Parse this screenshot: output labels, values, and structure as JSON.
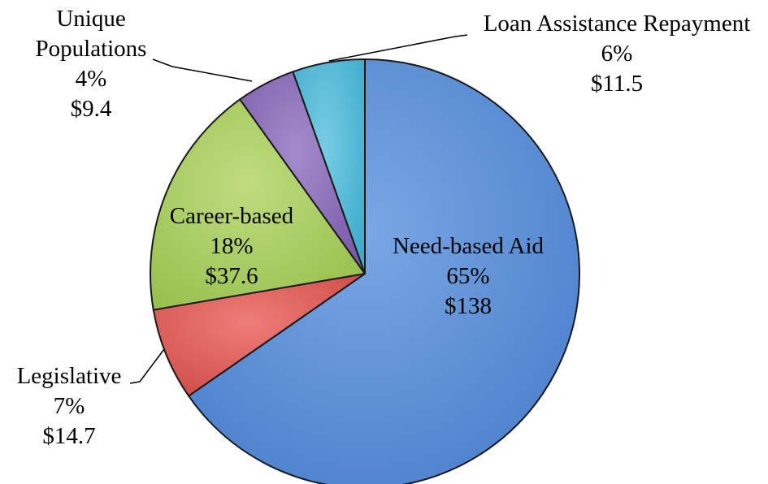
{
  "chart_data": {
    "type": "pie",
    "slices": [
      {
        "name": "Need-based Aid",
        "percent": "65%",
        "value": "$138",
        "amount": 138,
        "color": "#5b8fd6"
      },
      {
        "name": "Legislative",
        "percent": "7%",
        "value": "$14.7",
        "amount": 14.7,
        "color": "#d9534f"
      },
      {
        "name": "Career-based",
        "percent": "18%",
        "value": "$37.6",
        "amount": 37.6,
        "color": "#a6cc5c"
      },
      {
        "name": "Unique Populations",
        "name_lines": [
          "Unique",
          "Populations"
        ],
        "percent": "4%",
        "value": "$9.4",
        "amount": 9.4,
        "color": "#8a6cb8"
      },
      {
        "name": "Loan Assistance Repayment",
        "percent": "6%",
        "value": "$11.5",
        "amount": 11.5,
        "color": "#4fb8d6"
      }
    ]
  }
}
